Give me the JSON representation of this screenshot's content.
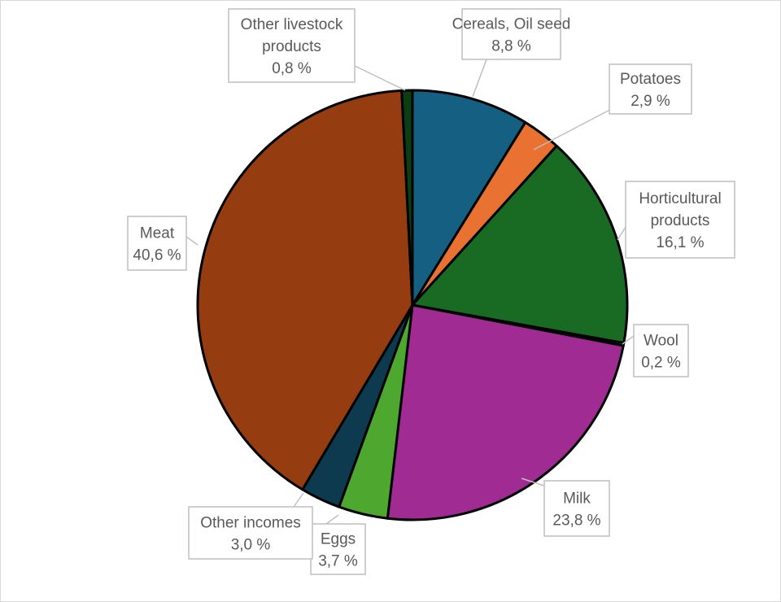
{
  "chart_data": {
    "type": "pie",
    "title": "",
    "start_angle": "top",
    "direction": "clockwise",
    "slices": [
      {
        "label": [
          "Cereals, Oil seed"
        ],
        "value": 8.8,
        "text": "8,8 %",
        "color": "#156082"
      },
      {
        "label": [
          "Potatoes"
        ],
        "value": 2.9,
        "text": "2,9 %",
        "color": "#e97132"
      },
      {
        "label": [
          "Horticultural",
          "products"
        ],
        "value": 16.1,
        "text": "16,1 %",
        "color": "#196b24"
      },
      {
        "label": [
          "Wool"
        ],
        "value": 0.2,
        "text": "0,2 %",
        "color": "#0f9ed5"
      },
      {
        "label": [
          "Milk"
        ],
        "value": 23.8,
        "text": "23,8 %",
        "color": "#a02b93"
      },
      {
        "label": [
          "Eggs"
        ],
        "value": 3.7,
        "text": "3,7 %",
        "color": "#4ea72e"
      },
      {
        "label": [
          "Other incomes"
        ],
        "value": 3.0,
        "text": "3,0 %",
        "color": "#0e3a50"
      },
      {
        "label": [
          "Meat"
        ],
        "value": 40.6,
        "text": "40,6 %",
        "color": "#963c11"
      },
      {
        "label": [
          "Other livestock",
          "products"
        ],
        "value": 0.8,
        "text": "0,8 %",
        "color": "#0c3e14"
      }
    ]
  }
}
